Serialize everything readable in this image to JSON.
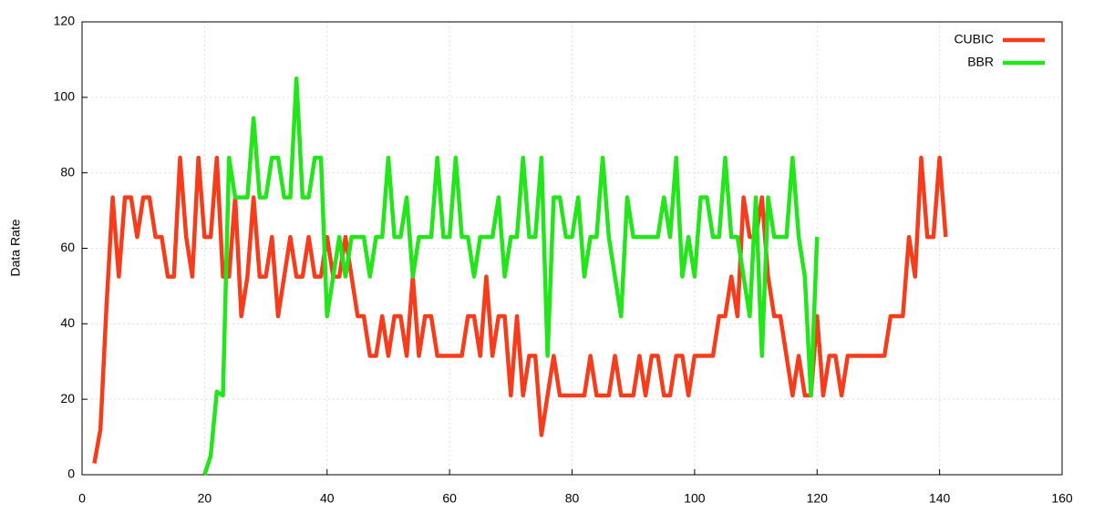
{
  "chart_data": {
    "type": "line",
    "y_label": "Data Rate",
    "x": [
      2,
      3,
      4,
      5,
      6,
      7,
      8,
      9,
      10,
      11,
      12,
      13,
      14,
      15,
      16,
      17,
      18,
      19,
      20,
      21,
      22,
      23,
      24,
      25,
      26,
      27,
      28,
      29,
      30,
      31,
      32,
      33,
      34,
      35,
      36,
      37,
      38,
      39,
      40,
      41,
      42,
      43,
      44,
      45,
      46,
      47,
      48,
      49,
      50,
      51,
      52,
      53,
      54,
      55,
      56,
      57,
      58,
      59,
      60,
      61,
      62,
      63,
      64,
      65,
      66,
      67,
      68,
      69,
      70,
      71,
      72,
      73,
      74,
      75,
      76,
      77,
      78,
      79,
      80,
      81,
      82,
      83,
      84,
      85,
      86,
      87,
      88,
      89,
      90,
      91,
      92,
      93,
      94,
      95,
      96,
      97,
      98,
      99,
      100,
      101,
      102,
      103,
      104,
      105,
      106,
      107,
      108,
      109,
      110,
      111,
      112,
      113,
      114,
      115,
      116,
      117,
      118,
      119,
      120,
      121,
      122,
      123,
      124,
      125,
      126,
      127,
      128,
      129,
      130,
      131,
      132,
      133,
      134,
      135,
      136,
      137,
      138,
      139,
      140,
      141
    ],
    "series": [
      {
        "name": "CUBIC",
        "color": "#f73c1c",
        "values": [
          3,
          12,
          45,
          73.5,
          52.5,
          73.5,
          73.5,
          63,
          73.5,
          73.5,
          63,
          63,
          52.5,
          52.5,
          84,
          63,
          52.5,
          84,
          63,
          63,
          84,
          52.5,
          52.5,
          73.5,
          42,
          52.5,
          73.5,
          52.5,
          52.5,
          63,
          42,
          52.5,
          63,
          52.5,
          52.5,
          63,
          52.5,
          52.5,
          63,
          52.5,
          52.5,
          63,
          52.5,
          42,
          42,
          31.5,
          31.5,
          42,
          31.5,
          42,
          42,
          31.5,
          52.5,
          31.5,
          42,
          42,
          31.5,
          31.5,
          31.5,
          31.5,
          31.5,
          42,
          42,
          31.5,
          52.5,
          31.5,
          42,
          42,
          21,
          42,
          21,
          31.5,
          31.5,
          10.5,
          21,
          31.5,
          21,
          21,
          21,
          21,
          21,
          31.5,
          21,
          21,
          21,
          31.5,
          21,
          21,
          21,
          31.5,
          21,
          31.5,
          31.5,
          21,
          21,
          31.5,
          31.5,
          21,
          31.5,
          31.5,
          31.5,
          31.5,
          42,
          42,
          52.5,
          42,
          73.5,
          63,
          63,
          73.5,
          52.5,
          42,
          42,
          31.5,
          21,
          31.5,
          21,
          21,
          42,
          21,
          31.5,
          31.5,
          21,
          31.5,
          31.5,
          31.5,
          31.5,
          31.5,
          31.5,
          31.5,
          42,
          42,
          42,
          63,
          52.5,
          84,
          63,
          63,
          84,
          63
        ]
      },
      {
        "name": "BBR",
        "color": "#22e61a",
        "values": [
          null,
          null,
          null,
          null,
          null,
          null,
          null,
          null,
          null,
          null,
          null,
          null,
          null,
          null,
          null,
          null,
          null,
          null,
          0,
          5,
          22,
          21,
          84,
          73.5,
          73.5,
          73.5,
          94.5,
          73.5,
          73.5,
          84,
          84,
          73.5,
          73.5,
          105,
          73.5,
          73.5,
          84,
          84,
          42,
          52.5,
          63,
          52.5,
          63,
          63,
          63,
          52.5,
          63,
          63,
          84,
          63,
          63,
          73.5,
          52.5,
          63,
          63,
          63,
          84,
          63,
          63,
          84,
          63,
          63,
          52.5,
          63,
          63,
          63,
          73.5,
          52.5,
          63,
          63,
          84,
          63,
          63,
          84,
          31.5,
          73.5,
          73.5,
          63,
          63,
          73.5,
          52.5,
          63,
          63,
          84,
          63,
          52.5,
          42,
          73.5,
          63,
          63,
          63,
          63,
          63,
          73.5,
          63,
          84,
          52.5,
          63,
          52.5,
          73.5,
          73.5,
          63,
          63,
          84,
          63,
          63,
          52.5,
          42,
          73.5,
          31.5,
          73.5,
          63,
          63,
          63,
          84,
          63,
          52.5,
          21,
          63,
          null,
          null,
          null,
          null,
          null,
          null,
          null,
          null,
          null,
          null,
          null,
          null,
          null,
          null,
          null,
          null,
          null,
          null,
          null,
          null,
          null
        ]
      }
    ],
    "xlim": [
      0,
      160
    ],
    "xticks": [
      0,
      20,
      40,
      60,
      80,
      100,
      120,
      140,
      160
    ],
    "ylim": [
      0,
      120
    ],
    "yticks": [
      0,
      20,
      40,
      60,
      80,
      100,
      120
    ],
    "grid": true,
    "legend": "top-right"
  }
}
